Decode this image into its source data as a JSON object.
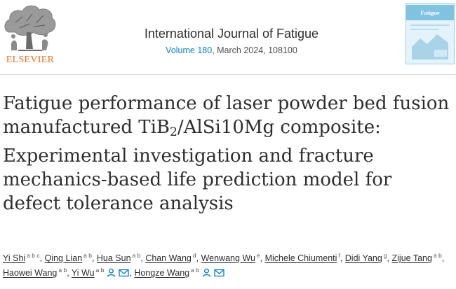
{
  "publisher": {
    "name": "ELSEVIER"
  },
  "journal": {
    "name": "International Journal of Fatigue",
    "volume": "Volume 180",
    "issue_rest": ", March 2024, 108100",
    "cover_title": "Fatigue"
  },
  "article": {
    "title_before_sub": "Fatigue performance of laser powder bed fusion manufactured TiB",
    "title_sub": "2",
    "title_after_sub": "/AlSi10Mg composite: Experimental investigation and fracture mechanics-based life prediction model for defect tolerance analysis"
  },
  "authors": [
    {
      "name": "Yi Shi",
      "aff": "a b c"
    },
    {
      "name": "Qing Lian",
      "aff": "a b"
    },
    {
      "name": "Hua Sun",
      "aff": "a b"
    },
    {
      "name": "Chan Wang",
      "aff": "d"
    },
    {
      "name": "Wenwang Wu",
      "aff": "e"
    },
    {
      "name": "Michele Chiumenti",
      "aff": "f"
    },
    {
      "name": "Didi Yang",
      "aff": "g"
    },
    {
      "name": "Zijue Tang",
      "aff": "a b"
    },
    {
      "name": "Haowei Wang",
      "aff": "a b"
    },
    {
      "name": "Yi Wu",
      "aff": "a b",
      "icons": true
    },
    {
      "name": "Hongze Wang",
      "aff": "a b",
      "icons": true
    }
  ],
  "colors": {
    "link": "#0c7dbb",
    "publisher_orange": "#e9711c",
    "text": "#2e2e2e"
  }
}
